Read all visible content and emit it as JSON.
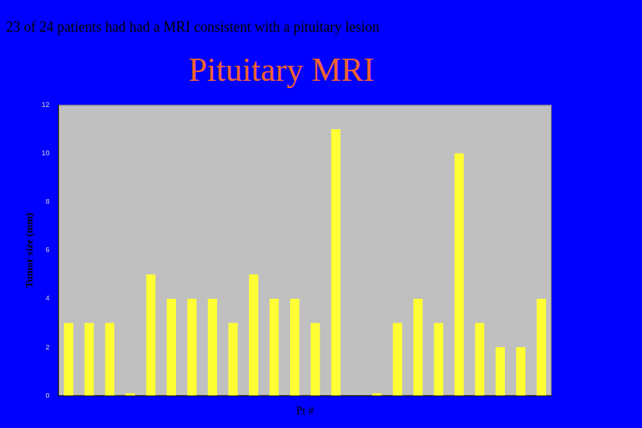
{
  "chart_data": {
    "type": "bar",
    "subtitle": "23 of 24 patients had had a MRI consistent with a pituitary lesion",
    "title": "Pituitary MRI",
    "x_label": "Pt #",
    "y_label": "Tumor size (mm)",
    "categories": [
      null,
      null,
      null,
      null,
      null,
      null,
      null,
      null,
      null,
      null,
      null,
      null,
      null,
      null,
      null,
      null,
      null,
      null,
      null,
      null,
      null,
      null,
      null,
      null
    ],
    "values": [
      3,
      3,
      3,
      0.1,
      5,
      4,
      4,
      4,
      3,
      5,
      4,
      4,
      3,
      11,
      0,
      0.1,
      3,
      4,
      3,
      10,
      3,
      2,
      2,
      4
    ],
    "color": "#ffff33",
    "ylim": [
      0,
      12
    ],
    "yticks": [
      0,
      2,
      4,
      6,
      8,
      10,
      12
    ],
    "grid": false,
    "tick_labels": "y"
  }
}
